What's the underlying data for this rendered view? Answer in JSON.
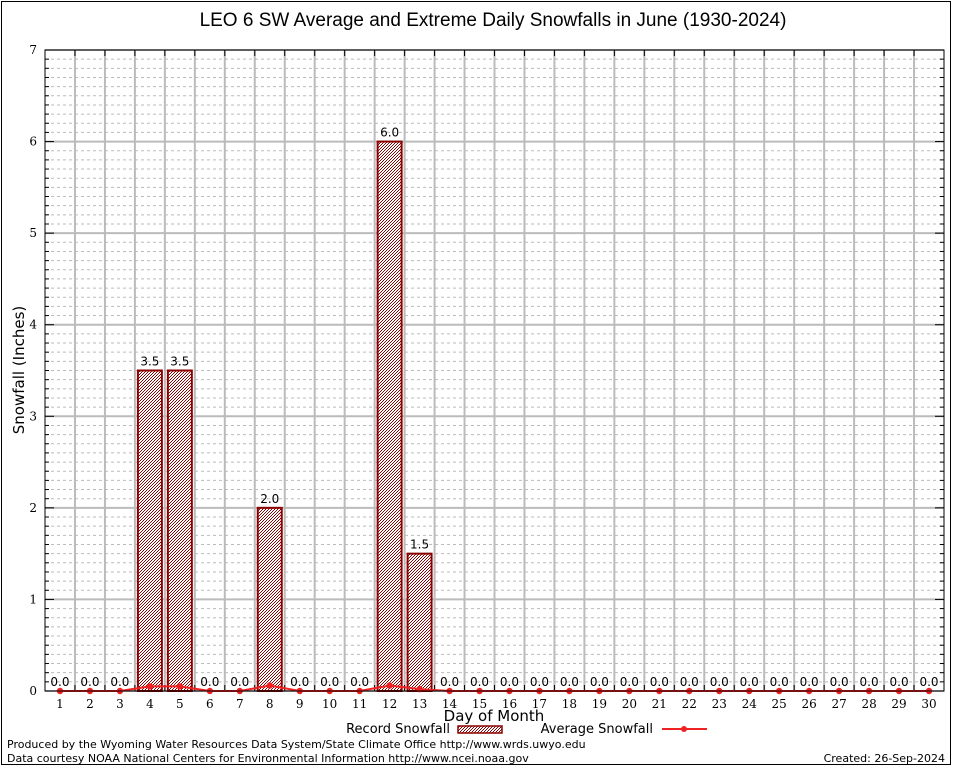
{
  "chart_data": {
    "type": "bar",
    "title": "LEO 6 SW Average and Extreme Daily Snowfalls in June (1930-2024)",
    "xlabel": "Day of Month",
    "ylabel": "Snowfall (Inches)",
    "ylim": [
      0,
      7
    ],
    "yticks": [
      0,
      1,
      2,
      3,
      4,
      5,
      6,
      7
    ],
    "categories": [
      "1",
      "2",
      "3",
      "4",
      "5",
      "6",
      "7",
      "8",
      "9",
      "10",
      "11",
      "12",
      "13",
      "14",
      "15",
      "16",
      "17",
      "18",
      "19",
      "20",
      "21",
      "22",
      "23",
      "24",
      "25",
      "26",
      "27",
      "28",
      "29",
      "30"
    ],
    "grid": true,
    "series": [
      {
        "name": "Record Snowfall",
        "kind": "bar",
        "color": "#8b0000",
        "values": [
          0.0,
          0.0,
          0.0,
          3.5,
          3.5,
          0.0,
          0.0,
          2.0,
          0.0,
          0.0,
          0.0,
          6.0,
          1.5,
          0.0,
          0.0,
          0.0,
          0.0,
          0.0,
          0.0,
          0.0,
          0.0,
          0.0,
          0.0,
          0.0,
          0.0,
          0.0,
          0.0,
          0.0,
          0.0,
          0.0
        ],
        "labels": [
          "0.0",
          "0.0",
          "0.0",
          "3.5",
          "3.5",
          "0.0",
          "0.0",
          "2.0",
          "0.0",
          "0.0",
          "0.0",
          "6.0",
          "1.5",
          "0.0",
          "0.0",
          "0.0",
          "0.0",
          "0.0",
          "0.0",
          "0.0",
          "0.0",
          "0.0",
          "0.0",
          "0.0",
          "0.0",
          "0.0",
          "0.0",
          "0.0",
          "0.0",
          "0.0"
        ]
      },
      {
        "name": "Average Snowfall",
        "kind": "line",
        "color": "#ee2222",
        "values": [
          0.0,
          0.0,
          0.0,
          0.05,
          0.05,
          0.0,
          0.0,
          0.06,
          0.0,
          0.0,
          0.0,
          0.06,
          0.02,
          0.0,
          0.0,
          0.0,
          0.0,
          0.0,
          0.0,
          0.0,
          0.0,
          0.0,
          0.0,
          0.0,
          0.0,
          0.0,
          0.0,
          0.0,
          0.0,
          0.0
        ]
      }
    ],
    "legend": {
      "placement": "bottom-center",
      "items": [
        "Record Snowfall",
        "Average Snowfall"
      ]
    }
  },
  "footer": {
    "line1": "Produced by the Wyoming Water Resources Data System/State Climate Office http://www.wrds.uwyo.edu",
    "line2": "Data courtesy NOAA National Centers for Environmental Information http://www.ncei.noaa.gov",
    "created": "Created: 26-Sep-2024"
  }
}
